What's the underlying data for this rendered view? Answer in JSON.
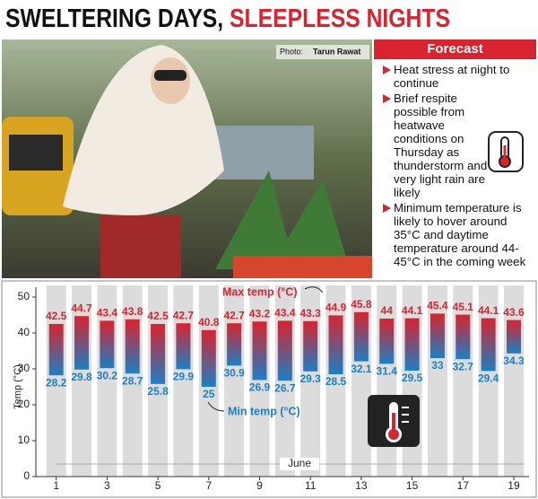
{
  "header": {
    "title": [
      "SWELTERING DAYS,",
      "SLEEPLESS NIGHTS"
    ],
    "photo_credit": [
      "Photo:",
      "Tarun Rawat"
    ]
  },
  "forecast": {
    "title": "Forecast",
    "items": [
      "Heat stress at night to continue",
      "Brief respite possible from heatwave conditions on Thursday as thunderstorm and very light rain are likely",
      "Minimum temperature is likely to hover around 35°C and daytime temperature around 44-45°C in the coming week"
    ]
  },
  "chart_data": {
    "type": "range_bar",
    "x_label": "June",
    "y_label": "Temp (°C)",
    "x": [
      1,
      2,
      3,
      4,
      5,
      6,
      7,
      8,
      9,
      10,
      11,
      12,
      13,
      14,
      15,
      16,
      17,
      18,
      19
    ],
    "series": [
      {
        "name": "Max temp (°C)",
        "color": "#d9232e",
        "values": [
          42.5,
          44.7,
          43.4,
          43.8,
          42.5,
          42.7,
          40.8,
          42.7,
          43.2,
          43.4,
          43.3,
          44.9,
          45.8,
          44,
          44.1,
          45.4,
          45.1,
          44.1,
          43.6
        ]
      },
      {
        "name": "Min temp (°C)",
        "color": "#1b7fc4",
        "values": [
          28.2,
          29.8,
          30.2,
          28.7,
          25.8,
          29.9,
          25,
          30.9,
          26.9,
          26.7,
          29.3,
          28.5,
          32.1,
          31.4,
          29.5,
          33,
          32.7,
          29.4,
          34.3
        ]
      }
    ],
    "xlim": [
      0.2,
      19.6
    ],
    "xticks": [
      1,
      3,
      5,
      7,
      9,
      11,
      13,
      15,
      17,
      19
    ],
    "ylim": [
      0,
      50
    ],
    "yticks": [
      0,
      10,
      20,
      30,
      40,
      50
    ]
  }
}
